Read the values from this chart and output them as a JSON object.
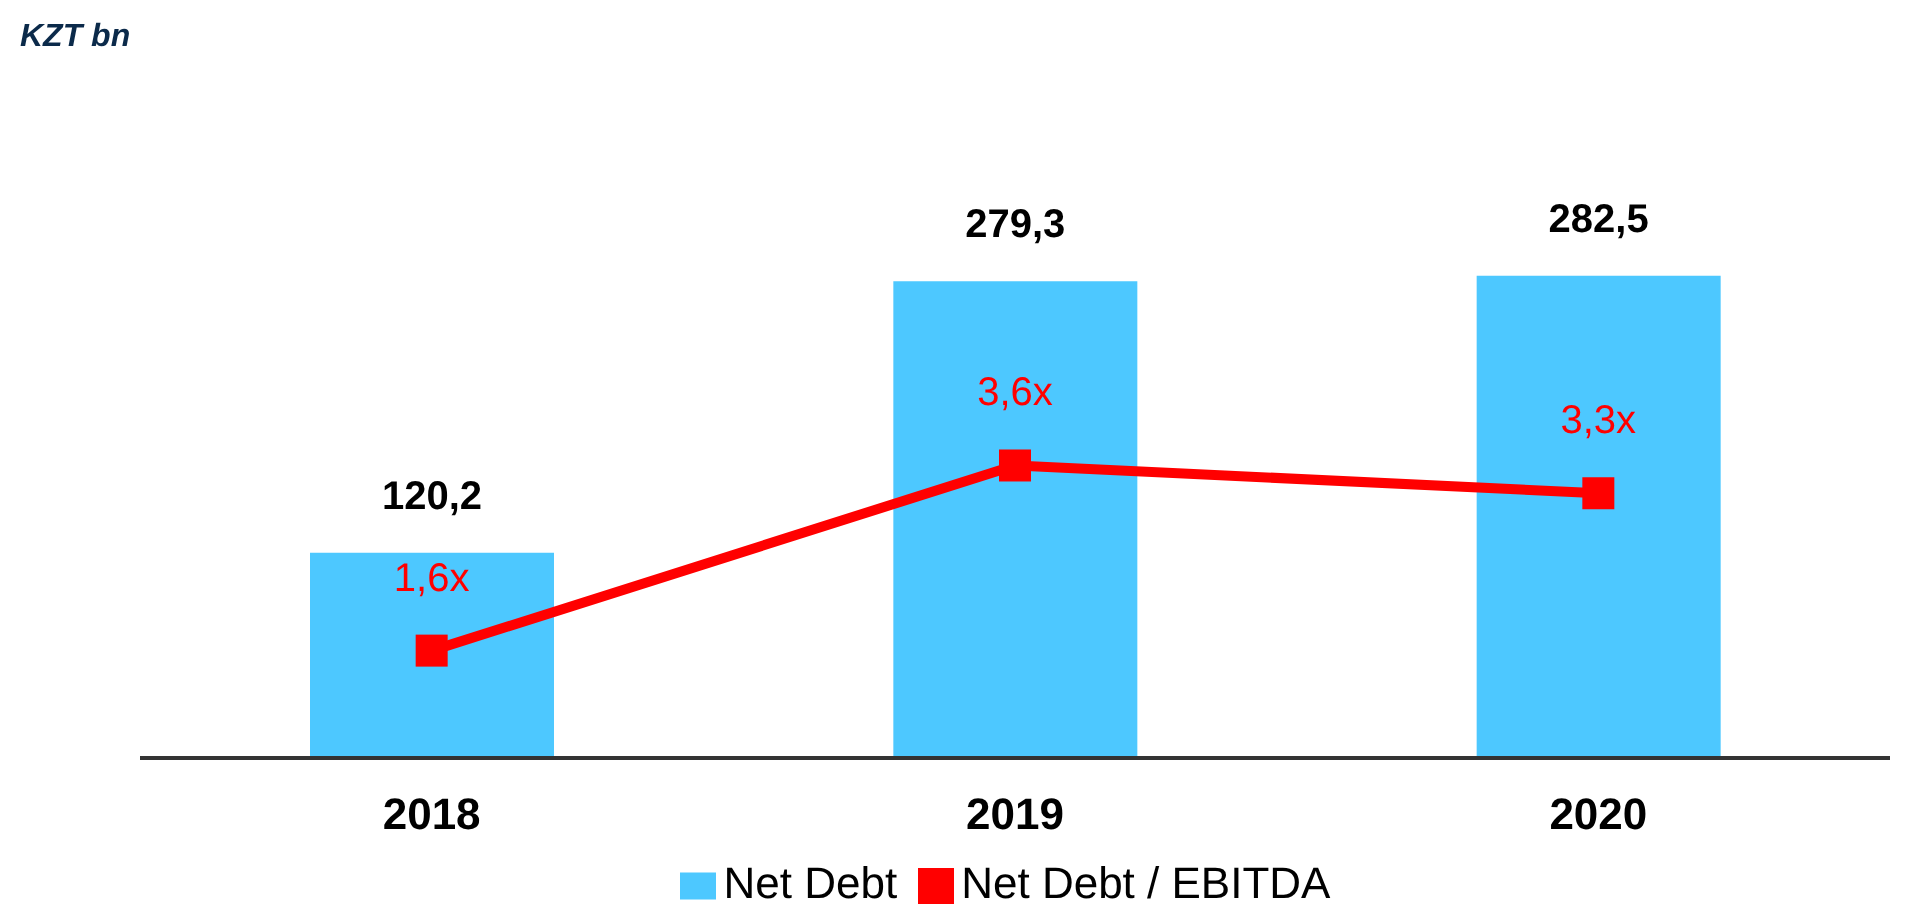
{
  "chart_data": {
    "type": "bar",
    "title": "KZT bn",
    "categories": [
      "2018",
      "2019",
      "2020"
    ],
    "series": [
      {
        "name": "Net Debt",
        "color": "#4dc8ff",
        "values": [
          120.2,
          279.3,
          282.5
        ],
        "value_labels": [
          "120,2",
          "279,3",
          "282,5"
        ]
      },
      {
        "name": "Net Debt / EBITDA",
        "type": "line",
        "axis": "y2",
        "color": "#ff0000",
        "values": [
          1.6,
          3.6,
          3.3
        ],
        "value_labels": [
          "1,6x",
          "3,6x",
          "3,3x"
        ]
      }
    ],
    "legend": "bottom",
    "marker": "square",
    "grid": false
  }
}
